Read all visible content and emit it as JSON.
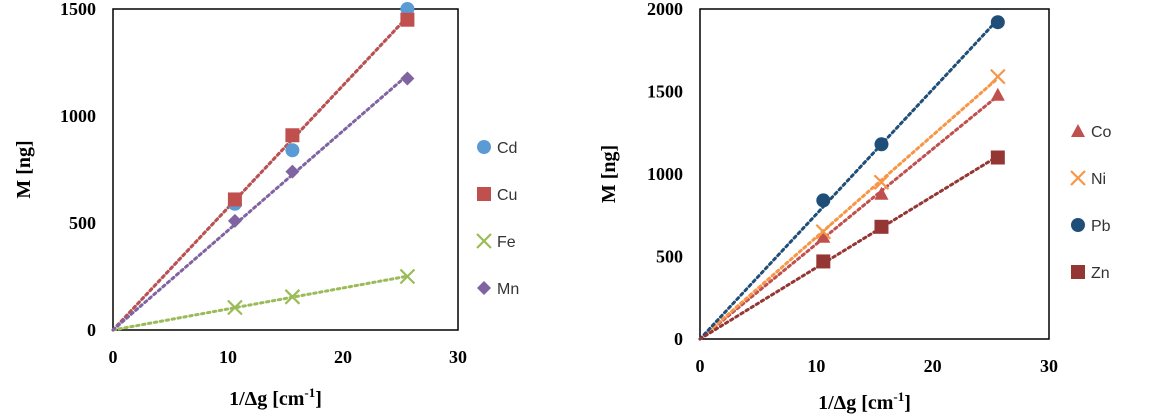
{
  "chart_data": [
    {
      "type": "scatter",
      "xlabel": "1/Δg [cm",
      "xlabel_sup": "-1",
      "xlabel_close": "]",
      "ylabel": "M [ng]",
      "xlim": [
        0,
        30
      ],
      "ylim": [
        0,
        1500
      ],
      "xticks": [
        0,
        10,
        20,
        30
      ],
      "yticks": [
        0,
        500,
        1000,
        1500
      ],
      "grid": false,
      "trendline": "linear, dotted",
      "legend": "right",
      "series": [
        {
          "name": "Cd",
          "marker": "circle",
          "color": "#5b9bd5",
          "x": [
            10.6,
            15.6,
            25.6
          ],
          "y": [
            590,
            840,
            1500
          ]
        },
        {
          "name": "Cu",
          "marker": "square",
          "color": "#c0504d",
          "x": [
            10.6,
            15.6,
            25.6
          ],
          "y": [
            610,
            910,
            1450
          ]
        },
        {
          "name": "Fe",
          "marker": "x",
          "color": "#9bbb59",
          "x": [
            10.6,
            15.6,
            25.6
          ],
          "y": [
            105,
            155,
            250
          ]
        },
        {
          "name": "Mn",
          "marker": "diamond",
          "color": "#8064a2",
          "x": [
            10.6,
            15.6,
            25.6
          ],
          "y": [
            510,
            740,
            1175
          ]
        }
      ]
    },
    {
      "type": "scatter",
      "xlabel": "1/Δg  [cm",
      "xlabel_sup": "-1",
      "xlabel_close": "]",
      "ylabel": "M [ng]",
      "xlim": [
        0,
        30
      ],
      "ylim": [
        0,
        2000
      ],
      "xticks": [
        0,
        10,
        20,
        30
      ],
      "yticks": [
        0,
        500,
        1000,
        1500,
        2000
      ],
      "grid": false,
      "trendline": "linear, dotted",
      "legend": "right",
      "series": [
        {
          "name": "Co",
          "marker": "triangle",
          "color": "#c0504d",
          "x": [
            10.6,
            15.6,
            25.6
          ],
          "y": [
            620,
            880,
            1480
          ]
        },
        {
          "name": "Ni",
          "marker": "x",
          "color": "#f79646",
          "x": [
            10.6,
            15.6,
            25.6
          ],
          "y": [
            650,
            950,
            1590
          ]
        },
        {
          "name": "Pb",
          "marker": "circle",
          "color": "#1f4e79",
          "x": [
            10.6,
            15.6,
            25.6
          ],
          "y": [
            840,
            1180,
            1920
          ]
        },
        {
          "name": "Zn",
          "marker": "square",
          "color": "#943634",
          "x": [
            10.6,
            15.6,
            25.6
          ],
          "y": [
            470,
            680,
            1100
          ]
        }
      ]
    }
  ]
}
